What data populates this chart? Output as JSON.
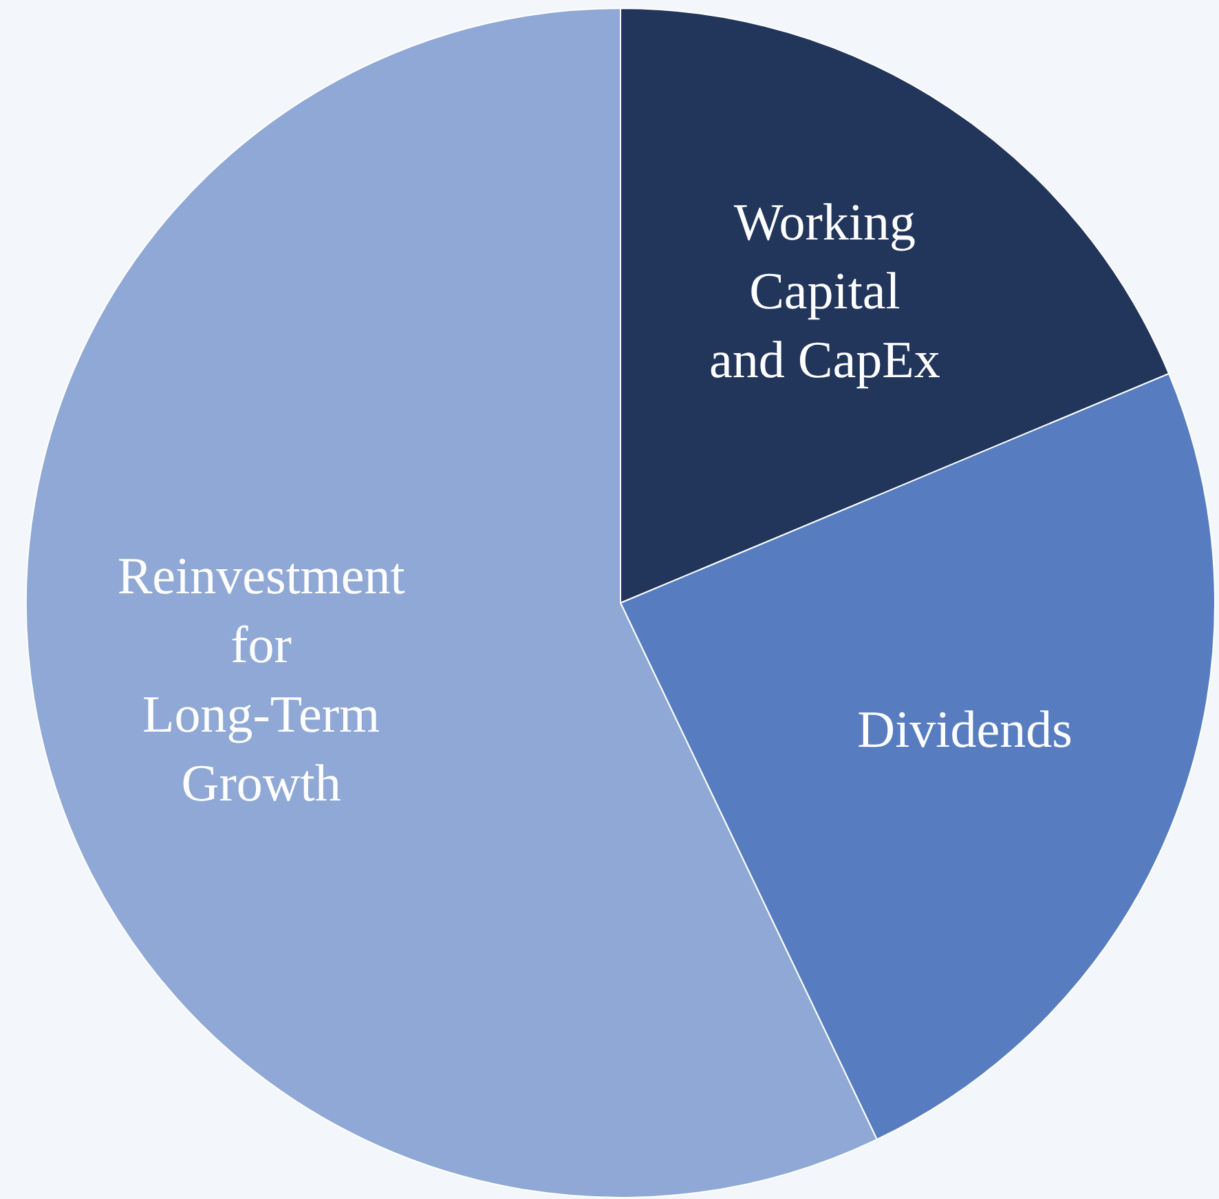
{
  "chart_data": {
    "type": "pie",
    "categories": [
      "Working\nCapital\nand CapEx",
      "Dividends",
      "Reinvestment\nfor\nLong-Term\nGrowth"
    ],
    "values": [
      18.7,
      24.2,
      57.1
    ],
    "colors": [
      "#22355b",
      "#577dc0",
      "#8fa8d5"
    ]
  }
}
